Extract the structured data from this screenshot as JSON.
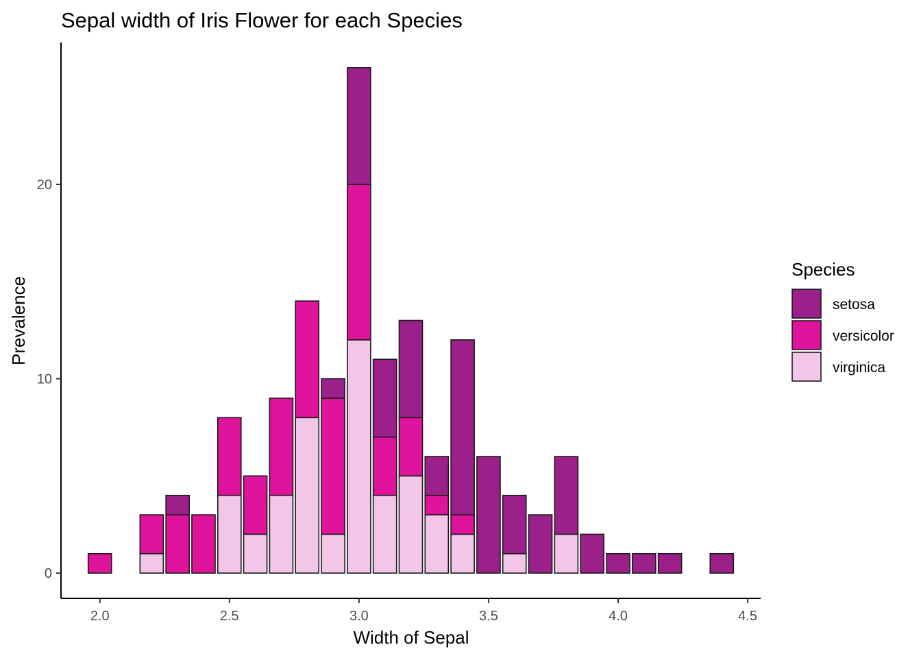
{
  "chart_data": {
    "type": "bar",
    "stacked": true,
    "title": "Sepal width of Iris Flower for each Species",
    "xlabel": "Width of Sepal",
    "ylabel": "Prevalence",
    "xlim": [
      1.85,
      4.55
    ],
    "ylim": [
      -1.3,
      27.3
    ],
    "x_ticks": [
      2.0,
      2.5,
      3.0,
      3.5,
      4.0,
      4.5
    ],
    "x_tick_labels": [
      "2.0",
      "2.5",
      "3.0",
      "3.5",
      "4.0",
      "4.5"
    ],
    "y_ticks": [
      0,
      10,
      20
    ],
    "y_tick_labels": [
      "0",
      "10",
      "20"
    ],
    "bar_width": 0.09,
    "grid": false,
    "legend": {
      "title": "Species",
      "position": "right"
    },
    "x": [
      2.0,
      2.2,
      2.3,
      2.4,
      2.5,
      2.6,
      2.7,
      2.8,
      2.9,
      3.0,
      3.1,
      3.2,
      3.3,
      3.4,
      3.5,
      3.6,
      3.7,
      3.8,
      3.9,
      4.0,
      4.1,
      4.2,
      4.4
    ],
    "series": [
      {
        "name": "setosa",
        "color": "#9b208a",
        "values": [
          0,
          0,
          1,
          0,
          0,
          0,
          0,
          0,
          1,
          6,
          4,
          5,
          2,
          9,
          6,
          3,
          3,
          4,
          2,
          1,
          1,
          1,
          1
        ]
      },
      {
        "name": "versicolor",
        "color": "#e0139c",
        "values": [
          1,
          2,
          3,
          3,
          4,
          3,
          5,
          6,
          7,
          8,
          3,
          3,
          1,
          1,
          0,
          0,
          0,
          0,
          0,
          0,
          0,
          0,
          0
        ]
      },
      {
        "name": "virginica",
        "color": "#f3c6e8",
        "values": [
          0,
          1,
          0,
          0,
          4,
          2,
          4,
          8,
          2,
          12,
          4,
          5,
          3,
          2,
          0,
          1,
          0,
          2,
          0,
          0,
          0,
          0,
          0
        ]
      }
    ]
  }
}
